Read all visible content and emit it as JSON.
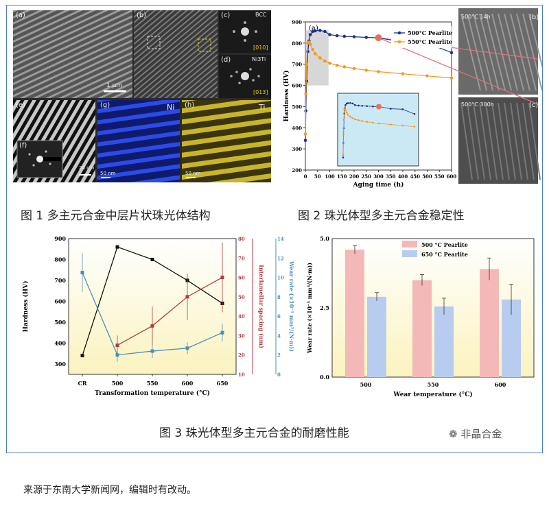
{
  "figure1": {
    "caption": "图 1  多主元合金中层片状珠光体结构",
    "panels": [
      {
        "label": "(a)"
      },
      {
        "label": "(b)"
      },
      {
        "label": "(c)"
      },
      {
        "label": "(d)"
      },
      {
        "label": "(e)"
      },
      {
        "label": "(f)"
      },
      {
        "label": "(g)"
      },
      {
        "label": "(h)"
      }
    ],
    "bcc_label": "BCC",
    "bcc_index": "[010]",
    "ni3ti_label": "Ni3Ti",
    "ni3ti_index": "[013]",
    "ni_label": "Ni",
    "ti_label": "Ti",
    "scale_a": "1 μm",
    "scale_e": "20 nm",
    "scale_g": "50 nm",
    "scale_h": "50 nm"
  },
  "figure2": {
    "caption": "图 2  珠光体型多主元合金稳定性",
    "panel_label": "(a)",
    "micro_b_label": "(b)",
    "micro_b_text": "500°C 14h",
    "micro_c_label": "(c)",
    "micro_c_text": "500°C 300h",
    "colors": {
      "s500": "#1d2f8f",
      "s550": "#f39a1e",
      "highlight": "#e8705a",
      "guide": "#e07080"
    }
  },
  "figure3": {
    "caption": "图 3  珠光体型多主元合金的耐磨性能",
    "panel_a_label": "(a)",
    "panel_b_label": "(b)",
    "colors": {
      "hardness": "#111111",
      "spacing": "#b5383a",
      "wear": "#4a8fb5",
      "bar500": "#f4b8b8",
      "bar650": "#b8ccf0"
    }
  },
  "watermark": "非晶合金",
  "footer": "来源于东南大学新闻网，编辑时有改动。",
  "chart_data": [
    {
      "type": "line",
      "xlabel": "Aging time (h)",
      "ylabel": "Hardness (HV)",
      "xlim": [
        0,
        600
      ],
      "ylim": [
        200,
        900
      ],
      "xticks": [
        0,
        50,
        100,
        150,
        200,
        250,
        300,
        350,
        400,
        450,
        500,
        550,
        600
      ],
      "yticks": [
        200,
        300,
        400,
        500,
        600,
        700,
        800,
        900
      ],
      "series": [
        {
          "name": "500°C Pearlite",
          "x": [
            0,
            2,
            5,
            10,
            15,
            20,
            30,
            40,
            60,
            80,
            100,
            130,
            160,
            200,
            250,
            300,
            400,
            500,
            600
          ],
          "y": [
            340,
            480,
            620,
            760,
            810,
            840,
            855,
            858,
            860,
            855,
            840,
            835,
            832,
            830,
            827,
            825,
            805,
            800,
            755
          ]
        },
        {
          "name": "550°C Pearlite",
          "x": [
            0,
            2,
            5,
            10,
            15,
            20,
            30,
            40,
            60,
            80,
            100,
            130,
            160,
            200,
            250,
            300,
            400,
            500,
            600
          ],
          "y": [
            370,
            560,
            700,
            800,
            805,
            795,
            770,
            750,
            730,
            715,
            705,
            695,
            688,
            680,
            672,
            665,
            655,
            645,
            635
          ]
        }
      ]
    },
    {
      "type": "line",
      "xlabel": "Transformation temperature (°C)",
      "categories": [
        "CR",
        "500",
        "550",
        "600",
        "650"
      ],
      "ylabels": [
        "Hardness (HV)",
        "Interlamellar spacing (nm)",
        "Wear rate (×10⁻⁵ mm³/(N·m))"
      ],
      "ylims": [
        [
          250,
          900
        ],
        [
          10,
          80
        ],
        [
          0,
          14
        ]
      ],
      "yticks_hardness": [
        300,
        400,
        500,
        600,
        700,
        800,
        900
      ],
      "yticks_spacing": [
        10,
        20,
        30,
        40,
        50,
        60,
        70,
        80
      ],
      "yticks_wear": [
        0,
        2,
        4,
        6,
        8,
        10,
        12,
        14
      ],
      "series": [
        {
          "name": "Hardness",
          "values": [
            340,
            860,
            800,
            700,
            590
          ]
        },
        {
          "name": "Interlamellar spacing",
          "values": [
            null,
            25,
            35,
            50,
            60
          ]
        },
        {
          "name": "Wear rate",
          "values": [
            10.5,
            2,
            2.4,
            2.7,
            4.3
          ]
        }
      ]
    },
    {
      "type": "bar",
      "xlabel": "Wear temperature (°C)",
      "ylabel": "Wear rate (×10⁻⁵ mm³/(N·m))",
      "categories": [
        "500",
        "550",
        "600"
      ],
      "ylim": [
        0,
        5
      ],
      "yticks": [
        "0.0",
        "2.5",
        "5.0"
      ],
      "series": [
        {
          "name": "500 °C Pearlite",
          "values": [
            4.6,
            3.5,
            3.9
          ],
          "errors": [
            0.15,
            0.2,
            0.4
          ]
        },
        {
          "name": "650 °C Pearlite",
          "values": [
            2.9,
            2.55,
            2.8
          ],
          "errors": [
            0.15,
            0.3,
            0.55
          ]
        }
      ]
    }
  ]
}
